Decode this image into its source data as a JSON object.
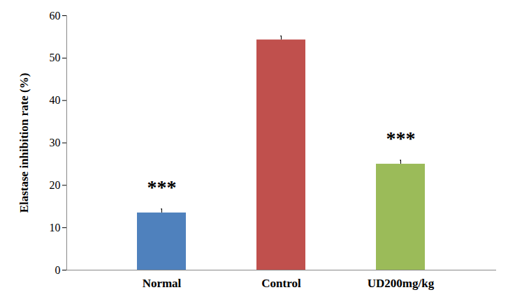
{
  "chart_data": {
    "type": "bar",
    "y_label": "Elastase inhibition rate (%)",
    "categories": [
      "Normal",
      "Control",
      "UD200mg/kg"
    ],
    "values": [
      13.5,
      54.3,
      25.0
    ],
    "errors": [
      0.9,
      0.9,
      0.9
    ],
    "colors": [
      "#4f81bd",
      "#c0504d",
      "#9bbb59"
    ],
    "annotations": [
      {
        "category": "Normal",
        "text": "***"
      },
      {
        "category": "UD200mg/kg",
        "text": "***"
      }
    ],
    "ylim": [
      0,
      60
    ],
    "yticks": [
      0,
      10,
      20,
      30,
      40,
      50,
      60
    ],
    "grid": false
  }
}
